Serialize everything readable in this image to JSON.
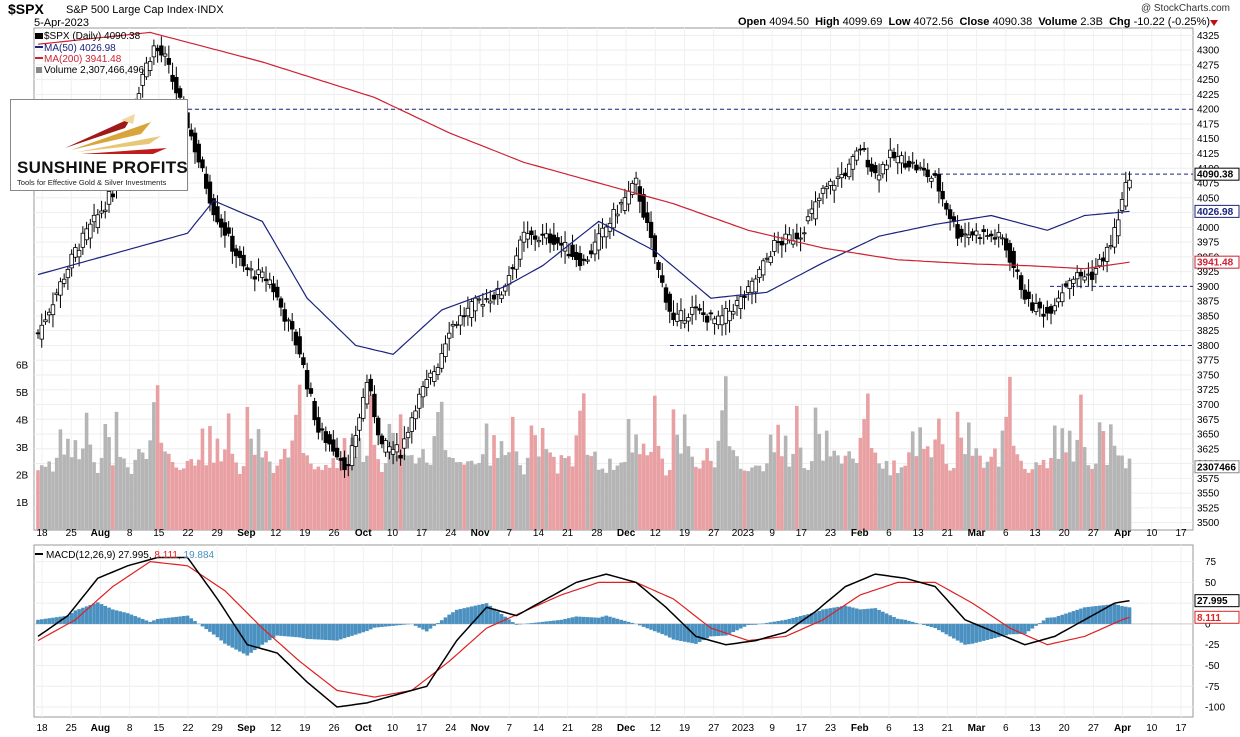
{
  "header": {
    "symbol": "$SPX",
    "name": "S&P 500 Large Cap Index",
    "exchange": "INDX",
    "date": "5-Apr-2023",
    "copyright": "@ StockCharts.com",
    "open_label": "Open",
    "open": "4094.50",
    "high_label": "High",
    "high": "4099.69",
    "low_label": "Low",
    "low": "4072.56",
    "close_label": "Close",
    "close": "4090.38",
    "volume_label": "Volume",
    "volume": "2.3B",
    "chg_label": "Chg",
    "chg": "-10.22 (-0.25%)"
  },
  "legend": {
    "price": "$SPX (Daily) 4090.38",
    "ma50": "MA(50) 4026.98",
    "ma200": "MA(200) 3941.48",
    "volume": "Volume 2,307,466,496",
    "macd_label": "MACD(12,26,9)",
    "macd_value": "27.995",
    "signal_value": "8.111",
    "hist_value": "19.884"
  },
  "logo": {
    "brand": "SUNSHINE PROFITS",
    "tagline": "Tools for Effective Gold & Silver Investments"
  },
  "price_labels": {
    "close": "4090.38",
    "ma50": "4026.98",
    "ma200": "3941.48",
    "volume": "2307466",
    "macd": "27.995",
    "signal": "8.111"
  },
  "colors": {
    "up": "#ffffff",
    "down": "#000000",
    "ma50": "#1a237e",
    "ma200": "#cc2233",
    "vol_up": "#b5b5b5",
    "vol_down": "#e8a0a3",
    "hist": "#4a90c0",
    "macd": "#000000",
    "signal": "#dd2222",
    "guide": "#1a237e"
  },
  "chart_data": {
    "type": "candlestick",
    "y_axis_ticks": [
      "4325",
      "4300",
      "4275",
      "4250",
      "4225",
      "4200",
      "4175",
      "4150",
      "4125",
      "4100",
      "4075",
      "4050",
      "4025",
      "4000",
      "3975",
      "3950",
      "3925",
      "3900",
      "3875",
      "3850",
      "3825",
      "3800",
      "3775",
      "3750",
      "3725",
      "3700",
      "3675",
      "3650",
      "3625",
      "3600",
      "3575",
      "3550",
      "3525",
      "3500"
    ],
    "volume_ticks": [
      "6B",
      "5B",
      "4B",
      "3B",
      "2B",
      "1B"
    ],
    "macd_ticks": [
      "75",
      "50",
      "25",
      "0",
      "-25",
      "-50",
      "-75",
      "-100"
    ],
    "x_ticks": [
      "18",
      "25",
      "Aug",
      "8",
      "15",
      "22",
      "29",
      "Sep",
      "12",
      "19",
      "26",
      "Oct",
      "10",
      "17",
      "24",
      "Nov",
      "7",
      "14",
      "21",
      "28",
      "Dec",
      "12",
      "19",
      "27",
      "2023",
      "9",
      "17",
      "23",
      "Feb",
      "6",
      "13",
      "21",
      "Mar",
      "6",
      "13",
      "20",
      "27",
      "Apr",
      "10",
      "17"
    ],
    "horizontal_levels": [
      4200,
      4090,
      3900,
      3800
    ],
    "candle_count": 180,
    "series": [
      {
        "name": "$SPX (Daily)",
        "kind": "candles",
        "close_points": [
          [
            0,
            3820
          ],
          [
            10,
            3960
          ],
          [
            20,
            4060
          ],
          [
            28,
            4260
          ],
          [
            31,
            4305
          ],
          [
            34,
            4285
          ],
          [
            40,
            4175
          ],
          [
            47,
            4030
          ],
          [
            55,
            3930
          ],
          [
            62,
            3910
          ],
          [
            70,
            3790
          ],
          [
            75,
            3655
          ],
          [
            80,
            3620
          ],
          [
            83,
            3590
          ],
          [
            88,
            3740
          ],
          [
            92,
            3630
          ],
          [
            97,
            3620
          ],
          [
            101,
            3700
          ],
          [
            107,
            3770
          ],
          [
            110,
            3830
          ],
          [
            118,
            3875
          ],
          [
            124,
            3890
          ],
          [
            130,
            3985
          ],
          [
            138,
            3980
          ],
          [
            146,
            3940
          ],
          [
            155,
            4030
          ],
          [
            160,
            4075
          ],
          [
            166,
            3925
          ],
          [
            170,
            3840
          ],
          [
            175,
            3860
          ],
          [
            182,
            3840
          ],
          [
            190,
            3890
          ],
          [
            197,
            3970
          ],
          [
            204,
            3990
          ],
          [
            210,
            4060
          ],
          [
            217,
            4100
          ],
          [
            220,
            4135
          ],
          [
            224,
            4090
          ],
          [
            228,
            4120
          ],
          [
            233,
            4110
          ],
          [
            240,
            4080
          ],
          [
            246,
            3990
          ],
          [
            252,
            3990
          ],
          [
            258,
            3980
          ],
          [
            265,
            3870
          ],
          [
            270,
            3855
          ],
          [
            276,
            3915
          ],
          [
            282,
            3920
          ],
          [
            287,
            3970
          ],
          [
            292,
            4090
          ]
        ]
      },
      {
        "name": "MA(50)",
        "points": [
          [
            0,
            3920
          ],
          [
            40,
            3990
          ],
          [
            47,
            4045
          ],
          [
            60,
            4010
          ],
          [
            72,
            3880
          ],
          [
            85,
            3800
          ],
          [
            95,
            3785
          ],
          [
            108,
            3860
          ],
          [
            125,
            3900
          ],
          [
            135,
            3935
          ],
          [
            150,
            4010
          ],
          [
            165,
            3960
          ],
          [
            180,
            3880
          ],
          [
            195,
            3890
          ],
          [
            210,
            3940
          ],
          [
            225,
            3985
          ],
          [
            240,
            4005
          ],
          [
            255,
            4020
          ],
          [
            270,
            3995
          ],
          [
            280,
            4020
          ],
          [
            292,
            4027
          ]
        ]
      },
      {
        "name": "MA(200)",
        "points": [
          [
            0,
            4310
          ],
          [
            30,
            4330
          ],
          [
            60,
            4280
          ],
          [
            90,
            4220
          ],
          [
            110,
            4160
          ],
          [
            130,
            4110
          ],
          [
            150,
            4075
          ],
          [
            170,
            4040
          ],
          [
            190,
            3995
          ],
          [
            210,
            3965
          ],
          [
            230,
            3945
          ],
          [
            250,
            3938
          ],
          [
            265,
            3935
          ],
          [
            280,
            3930
          ],
          [
            292,
            3941
          ]
        ]
      },
      {
        "name": "Volume",
        "units": "B",
        "values_sample": [
          2.2,
          2.4,
          2.3,
          2.5,
          2.3,
          2.6,
          3.7,
          2.6,
          3.5,
          2.7,
          3.3,
          2.5,
          3.0,
          4.5,
          2.9,
          2.4,
          2.2,
          2.4,
          4.2,
          3.4,
          2.6,
          4.0,
          2.9,
          2.8,
          2.5,
          2.2,
          2.6,
          2.8,
          2.7,
          2.4,
          3.6,
          4.3,
          5.1,
          2.9,
          2.7,
          2.6,
          2.4,
          2.3
        ]
      },
      {
        "name": "MACD",
        "points": [
          [
            0,
            -15
          ],
          [
            8,
            10
          ],
          [
            16,
            55
          ],
          [
            24,
            70
          ],
          [
            32,
            80
          ],
          [
            40,
            80
          ],
          [
            48,
            30
          ],
          [
            56,
            -25
          ],
          [
            64,
            -35
          ],
          [
            72,
            -70
          ],
          [
            80,
            -100
          ],
          [
            88,
            -95
          ],
          [
            96,
            -85
          ],
          [
            104,
            -75
          ],
          [
            112,
            -20
          ],
          [
            120,
            20
          ],
          [
            128,
            10
          ],
          [
            136,
            30
          ],
          [
            144,
            50
          ],
          [
            152,
            60
          ],
          [
            160,
            50
          ],
          [
            168,
            20
          ],
          [
            176,
            -15
          ],
          [
            184,
            -25
          ],
          [
            192,
            -20
          ],
          [
            200,
            -10
          ],
          [
            208,
            15
          ],
          [
            216,
            45
          ],
          [
            224,
            60
          ],
          [
            232,
            55
          ],
          [
            240,
            45
          ],
          [
            248,
            5
          ],
          [
            256,
            -10
          ],
          [
            264,
            -25
          ],
          [
            272,
            -15
          ],
          [
            280,
            5
          ],
          [
            288,
            25
          ],
          [
            292,
            28
          ]
        ]
      },
      {
        "name": "Signal",
        "points": [
          [
            0,
            -20
          ],
          [
            10,
            5
          ],
          [
            20,
            45
          ],
          [
            30,
            75
          ],
          [
            40,
            70
          ],
          [
            50,
            40
          ],
          [
            60,
            -5
          ],
          [
            70,
            -45
          ],
          [
            80,
            -80
          ],
          [
            90,
            -88
          ],
          [
            100,
            -80
          ],
          [
            110,
            -45
          ],
          [
            120,
            -5
          ],
          [
            130,
            15
          ],
          [
            140,
            35
          ],
          [
            150,
            50
          ],
          [
            160,
            50
          ],
          [
            170,
            30
          ],
          [
            180,
            -5
          ],
          [
            190,
            -20
          ],
          [
            200,
            -15
          ],
          [
            210,
            5
          ],
          [
            220,
            35
          ],
          [
            230,
            50
          ],
          [
            240,
            50
          ],
          [
            250,
            25
          ],
          [
            260,
            -5
          ],
          [
            270,
            -25
          ],
          [
            280,
            -15
          ],
          [
            290,
            5
          ],
          [
            292,
            8
          ]
        ]
      }
    ]
  }
}
